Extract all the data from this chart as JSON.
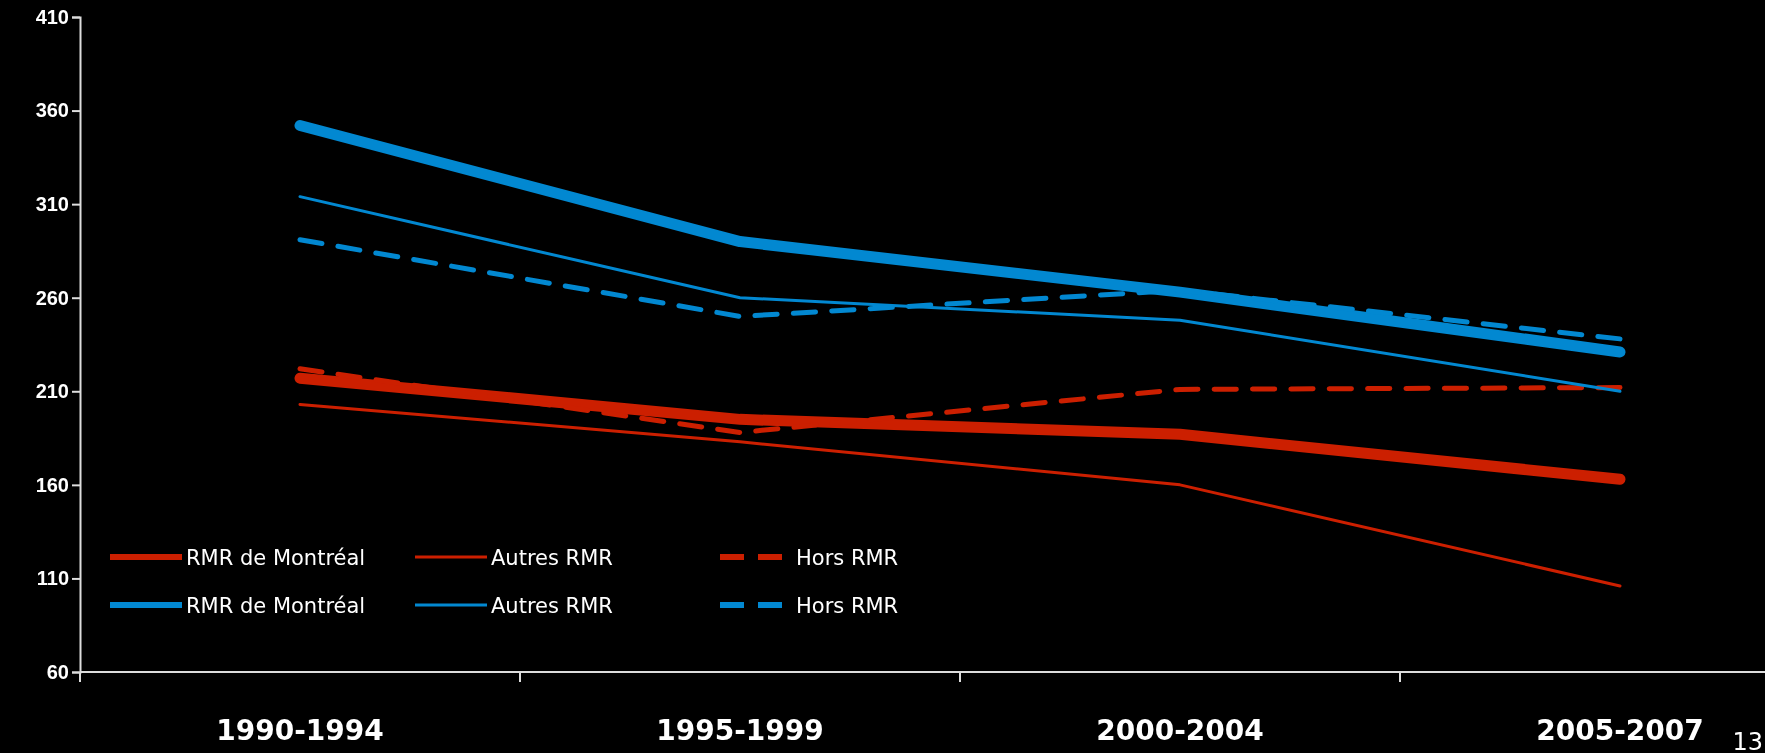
{
  "chart_data": {
    "type": "line",
    "categories": [
      "1990-1994",
      "1995-1999",
      "2000-2004",
      "2005-2007"
    ],
    "ylim": [
      60,
      410
    ],
    "yticks": [
      60,
      110,
      160,
      210,
      260,
      310,
      360,
      410
    ],
    "grid": false,
    "legend": "bottom left",
    "annotations": [
      "13"
    ],
    "series": [
      {
        "name": "RMR de Montréal",
        "color": "#cc1f00",
        "line_style": "solid",
        "values": [
          217,
          195,
          187,
          163
        ]
      },
      {
        "name": "Autres RMR",
        "color": "#cc1f00",
        "line_style": "solid",
        "values": [
          203,
          183,
          160,
          106
        ]
      },
      {
        "name": "Hors RMR",
        "color": "#cc1f00",
        "line_style": "dashed",
        "values": [
          222,
          188,
          211,
          212
        ]
      },
      {
        "name": "RMR de Montréal",
        "color": "#0288d1",
        "line_style": "solid",
        "values": [
          352,
          290,
          263,
          231
        ]
      },
      {
        "name": "Autres RMR",
        "color": "#0288d1",
        "line_style": "solid",
        "values": [
          314,
          260,
          248,
          210
        ]
      },
      {
        "name": "Hors RMR",
        "color": "#0288d1",
        "line_style": "dashed",
        "values": [
          291,
          250,
          264,
          238
        ]
      }
    ]
  }
}
